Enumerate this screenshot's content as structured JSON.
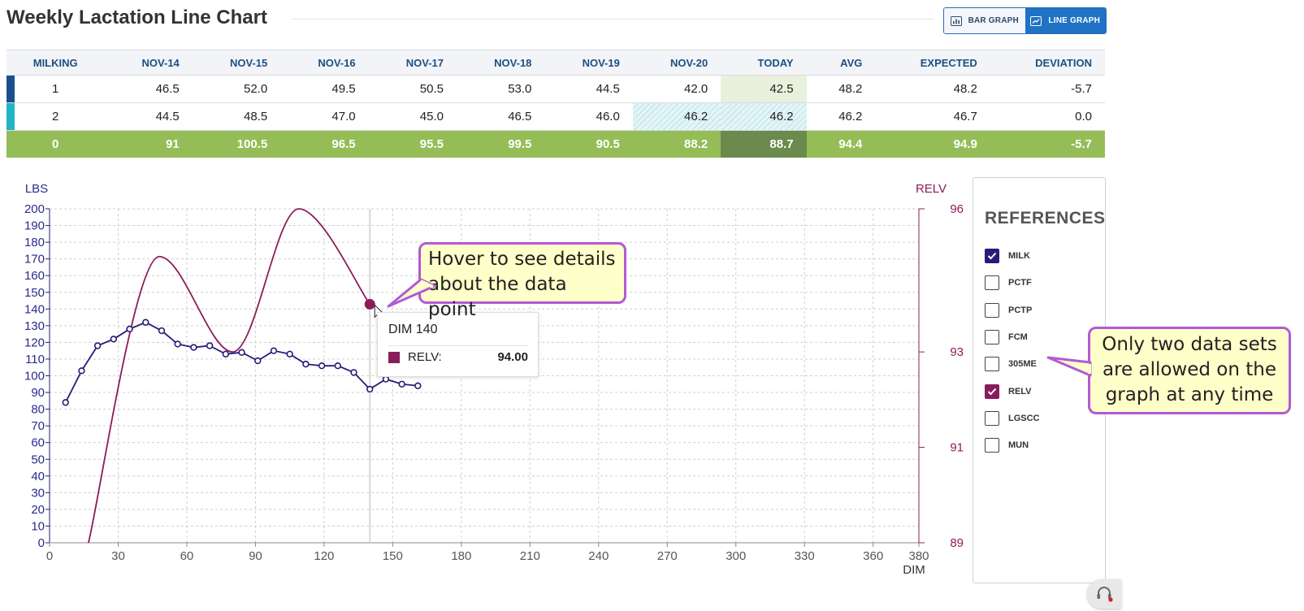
{
  "header": {
    "title": "Weekly Lactation Line Chart",
    "bar_graph_label": "BAR GRAPH",
    "line_graph_label": "LINE GRAPH"
  },
  "table": {
    "headers": [
      "MILKING",
      "NOV-14",
      "NOV-15",
      "NOV-16",
      "NOV-17",
      "NOV-18",
      "NOV-19",
      "NOV-20",
      "TODAY",
      "AVG",
      "EXPECTED",
      "DEVIATION"
    ],
    "rows": [
      [
        "1",
        "46.5",
        "52.0",
        "49.5",
        "50.5",
        "53.0",
        "44.5",
        "42.0",
        "42.5",
        "48.2",
        "48.2",
        "-5.7"
      ],
      [
        "2",
        "44.5",
        "48.5",
        "47.0",
        "45.0",
        "46.5",
        "46.0",
        "46.2",
        "46.2",
        "46.2",
        "46.7",
        "0.0"
      ],
      [
        "0",
        "91",
        "100.5",
        "96.5",
        "95.5",
        "99.5",
        "90.5",
        "88.2",
        "88.7",
        "94.4",
        "94.9",
        "-5.7"
      ]
    ],
    "row_colors": [
      "#1a4f8f",
      "#22b3c6",
      "#94bd57"
    ]
  },
  "chart_data": {
    "type": "line",
    "xlabel": "DIM",
    "ylabel_left": "LBS",
    "ylabel_right": "RELV",
    "xlim": [
      0,
      380
    ],
    "ylim_left": [
      0,
      200
    ],
    "ylim_right": [
      89,
      96
    ],
    "x_ticks": [
      0,
      30,
      60,
      90,
      120,
      150,
      180,
      210,
      240,
      270,
      300,
      330,
      360,
      380
    ],
    "y_ticks_left": [
      0,
      10,
      20,
      30,
      40,
      50,
      60,
      70,
      80,
      90,
      100,
      110,
      120,
      130,
      140,
      150,
      160,
      170,
      180,
      190,
      200
    ],
    "y_ticks_right": [
      89,
      91,
      93,
      96
    ],
    "grid": true,
    "series": [
      {
        "name": "MILK",
        "axis": "left",
        "color": "#2b1a78",
        "points": [
          [
            7,
            84
          ],
          [
            14,
            103
          ],
          [
            21,
            118
          ],
          [
            28,
            122
          ],
          [
            35,
            128
          ],
          [
            42,
            132
          ],
          [
            49,
            127
          ],
          [
            56,
            119
          ],
          [
            63,
            117
          ],
          [
            70,
            118
          ],
          [
            77,
            113
          ],
          [
            84,
            114
          ],
          [
            91,
            109
          ],
          [
            98,
            115
          ],
          [
            105,
            113
          ],
          [
            112,
            107
          ],
          [
            119,
            106
          ],
          [
            126,
            106
          ],
          [
            133,
            102
          ],
          [
            140,
            92
          ],
          [
            147,
            98
          ],
          [
            154,
            95
          ],
          [
            161,
            94
          ]
        ]
      },
      {
        "name": "RELV",
        "axis": "right",
        "color": "#8b1c5a",
        "points": [
          [
            17,
            89.0
          ],
          [
            48,
            95.0
          ],
          [
            80,
            93.0
          ],
          [
            109,
            96.0
          ],
          [
            140,
            94.0
          ]
        ]
      }
    ],
    "highlight": {
      "x": 140,
      "series": "RELV",
      "value": 94.0
    }
  },
  "tooltip": {
    "title": "DIM 140",
    "label": "RELV:",
    "value": "94.00"
  },
  "references": {
    "title": "REFERENCES",
    "items": [
      {
        "label": "MILK",
        "checked": true,
        "color": "#2b1a78"
      },
      {
        "label": "PCTF",
        "checked": false
      },
      {
        "label": "PCTP",
        "checked": false
      },
      {
        "label": "FCM",
        "checked": false
      },
      {
        "label": "305ME",
        "checked": false
      },
      {
        "label": "RELV",
        "checked": true,
        "color": "#8b1c5a"
      },
      {
        "label": "LGSCC",
        "checked": false
      },
      {
        "label": "MUN",
        "checked": false
      }
    ]
  },
  "callouts": {
    "hover": "Hover to see details about the data point",
    "limit": "Only two data sets are allowed on the graph at any time"
  }
}
